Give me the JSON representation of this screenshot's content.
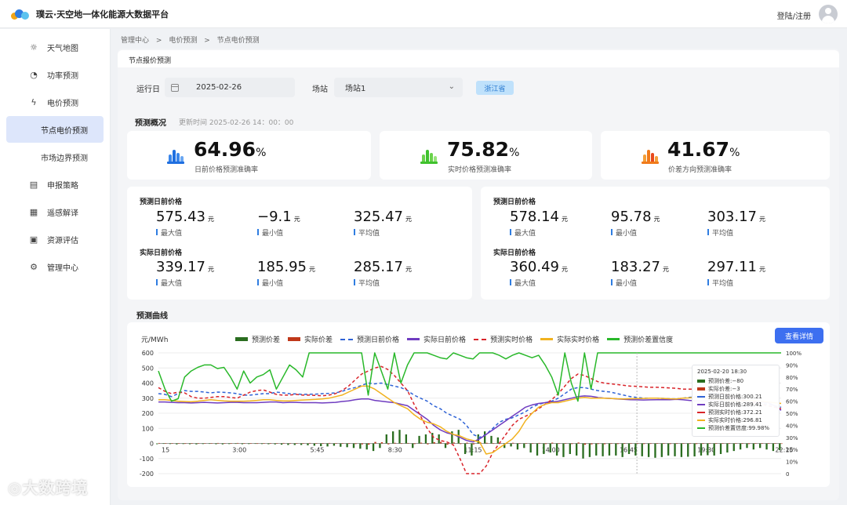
{
  "header": {
    "brand": "璞云·天空地一体化能源大数据平台",
    "login": "登陆/注册"
  },
  "sidebar": {
    "items": [
      {
        "label": "天气地图",
        "icon": "cloud-sun-icon"
      },
      {
        "label": "功率预测",
        "icon": "gauge-icon"
      },
      {
        "label": "电价预测",
        "icon": "lightning-icon"
      },
      {
        "label": "节点电价预测",
        "icon": ""
      },
      {
        "label": "市场边界预测",
        "icon": ""
      },
      {
        "label": "申报策略",
        "icon": "document-icon"
      },
      {
        "label": "遥感解译",
        "icon": "satellite-icon"
      },
      {
        "label": "资源评估",
        "icon": "database-icon"
      },
      {
        "label": "管理中心",
        "icon": "gear-icon"
      }
    ]
  },
  "breadcrumb": [
    "管理中心",
    ">",
    "电价预测",
    ">",
    "节点电价预测"
  ],
  "panel_title": "节点报价预测",
  "filters": {
    "date_label": "运行日",
    "date_value": "2025-02-26",
    "station_label": "场站",
    "station_value": "场站1",
    "region_tag": "浙江省"
  },
  "overview": {
    "title": "预测概况",
    "update_time": "更新时间 2025-02-26 14：00：00",
    "kpis": [
      {
        "value": "64.96",
        "unit": "%",
        "label": "日前价格预测准确率",
        "color": "#1f6fe0"
      },
      {
        "value": "75.82",
        "unit": "%",
        "label": "实时价格预测准确率",
        "color": "#3fc12d"
      },
      {
        "value": "41.67",
        "unit": "%",
        "label": "价差方向预测准确率",
        "color": "#f07a1a"
      }
    ]
  },
  "stats": {
    "left": {
      "forecast_title": "预测日前价格",
      "forecast": [
        {
          "v": "575.43",
          "u": "元",
          "l": "最大值"
        },
        {
          "v": "−9.1",
          "u": "元",
          "l": "最小值"
        },
        {
          "v": "325.47",
          "u": "元",
          "l": "平均值"
        }
      ],
      "actual_title": "实际日前价格",
      "actual": [
        {
          "v": "339.17",
          "u": "元",
          "l": "最大值"
        },
        {
          "v": "185.95",
          "u": "元",
          "l": "最小值"
        },
        {
          "v": "285.17",
          "u": "元",
          "l": "平均值"
        }
      ]
    },
    "right": {
      "forecast_title": "预测日前价格",
      "forecast": [
        {
          "v": "578.14",
          "u": "元",
          "l": "最大值"
        },
        {
          "v": "95.78",
          "u": "元",
          "l": "最小值"
        },
        {
          "v": "303.17",
          "u": "元",
          "l": "平均值"
        }
      ],
      "actual_title": "实际日前价格",
      "actual": [
        {
          "v": "360.49",
          "u": "元",
          "l": "最大值"
        },
        {
          "v": "183.27",
          "u": "元",
          "l": "最小值"
        },
        {
          "v": "297.11",
          "u": "元",
          "l": "平均值"
        }
      ]
    }
  },
  "curve": {
    "title": "预测曲线",
    "detail_button": "查看详情",
    "unit_label": "元/MWh",
    "tooltip": {
      "time": "2025-02-20 18:30",
      "rows": [
        "预测价差:−80",
        "实际价差:−3",
        "预测日前价格:300.21",
        "实际日前价格:289.41",
        "预测实时价格:372.21",
        "实际实时价格:296.81",
        "预测价差置信度:99.98%"
      ]
    }
  },
  "watermark": "大数跨境",
  "chart_data": {
    "type": "line",
    "x": [
      "0:15",
      "0:30",
      "0:45",
      "1:00",
      "1:15",
      "1:30",
      "1:45",
      "2:00",
      "2:15",
      "2:30",
      "2:45",
      "3:00",
      "3:15",
      "3:30",
      "3:45",
      "4:00",
      "4:15",
      "4:30",
      "4:45",
      "5:00",
      "5:15",
      "5:30",
      "5:45",
      "6:00",
      "6:15",
      "6:30",
      "6:45",
      "7:00",
      "7:15",
      "7:30",
      "7:45",
      "8:00",
      "8:15",
      "8:30",
      "8:45",
      "9:00",
      "9:15",
      "9:30",
      "9:45",
      "10:00",
      "10:15",
      "10:30",
      "10:45",
      "11:00",
      "11:15",
      "11:30",
      "11:45",
      "12:00",
      "12:15",
      "12:30",
      "12:45",
      "13:00",
      "13:15",
      "13:30",
      "13:45",
      "14:00",
      "14:15",
      "14:30",
      "14:45",
      "15:00",
      "15:15",
      "15:30",
      "15:45",
      "16:00",
      "16:15",
      "16:30",
      "16:45",
      "17:00",
      "17:15",
      "17:30",
      "17:45",
      "18:00",
      "18:15",
      "18:30",
      "18:45",
      "19:00",
      "19:15",
      "19:30",
      "19:45",
      "20:00",
      "20:15",
      "20:30",
      "20:45",
      "21:00",
      "21:15",
      "21:30",
      "21:45",
      "22:00",
      "22:15",
      "22:30",
      "22:45",
      "23:00",
      "23:15",
      "23:30",
      "23:45",
      "24:00"
    ],
    "x_tick_labels": [
      "15",
      "3:00",
      "5:45",
      "8:30",
      "11:15",
      "14:00",
      "16:45",
      "19:30",
      "22:15"
    ],
    "y_left": {
      "min": -200,
      "max": 600,
      "ticks": [
        600,
        500,
        400,
        300,
        200,
        100,
        0,
        -100,
        -200
      ]
    },
    "y_right": {
      "min": 0,
      "max": 100,
      "ticks": [
        "100%",
        "90%",
        "80%",
        "70%",
        "60%",
        "50%",
        "40%",
        "30%",
        "20%",
        "10%",
        "0"
      ]
    },
    "legend": [
      "预测价差",
      "实际价差",
      "预测日前价格",
      "实际日前价格",
      "预测实时价格",
      "实际实时价格",
      "预测价差置信度"
    ],
    "series": [
      {
        "name": "预测日前价格",
        "color": "#2f63d6",
        "dash": true,
        "axis": "left",
        "values": [
          330,
          325,
          310,
          330,
          350,
          345,
          345,
          340,
          335,
          340,
          338,
          335,
          330,
          320,
          320,
          325,
          330,
          330,
          340,
          335,
          330,
          328,
          325,
          326,
          327,
          330,
          332,
          335,
          345,
          360,
          370,
          385,
          400,
          395,
          400,
          390,
          380,
          370,
          350,
          320,
          300,
          280,
          250,
          230,
          200,
          180,
          160,
          120,
          60,
          40,
          60,
          100,
          140,
          160,
          170,
          190,
          210,
          240,
          260,
          270,
          280,
          300,
          330,
          360,
          370,
          370,
          360,
          350,
          345,
          340,
          330,
          320,
          310,
          305,
          300,
          300,
          300,
          298,
          296,
          295,
          300,
          305,
          310,
          320,
          330,
          330,
          320,
          310,
          300,
          290,
          280,
          270,
          265,
          260,
          250,
          240
        ]
      },
      {
        "name": "实际日前价格",
        "color": "#6f3cc0",
        "dash": false,
        "axis": "left",
        "values": [
          275,
          275,
          272,
          270,
          270,
          268,
          270,
          272,
          270,
          268,
          270,
          272,
          272,
          270,
          270,
          270,
          272,
          275,
          275,
          270,
          272,
          272,
          270,
          270,
          270,
          268,
          270,
          272,
          278,
          282,
          290,
          295,
          295,
          285,
          280,
          275,
          270,
          260,
          250,
          220,
          190,
          160,
          120,
          90,
          70,
          60,
          40,
          20,
          10,
          30,
          60,
          90,
          120,
          150,
          180,
          210,
          240,
          255,
          265,
          270,
          275,
          280,
          290,
          300,
          310,
          315,
          312,
          305,
          300,
          298,
          295,
          292,
          290,
          289,
          288,
          289,
          290,
          290,
          290,
          292,
          290,
          285,
          282,
          282,
          283,
          285,
          290,
          290,
          285,
          280,
          278,
          275,
          275,
          270,
          250,
          220
        ]
      },
      {
        "name": "预测实时价格",
        "color": "#d9242a",
        "dash": true,
        "axis": "left",
        "values": [
          370,
          345,
          330,
          340,
          335,
          310,
          300,
          300,
          305,
          310,
          310,
          305,
          300,
          320,
          340,
          350,
          355,
          340,
          325,
          320,
          320,
          325,
          320,
          320,
          318,
          316,
          320,
          330,
          350,
          380,
          420,
          460,
          480,
          500,
          510,
          490,
          450,
          400,
          350,
          260,
          180,
          100,
          40,
          20,
          10,
          -10,
          -100,
          -200,
          -200,
          -200,
          -150,
          -60,
          0,
          60,
          120,
          160,
          180,
          200,
          230,
          260,
          290,
          330,
          380,
          430,
          460,
          450,
          430,
          410,
          400,
          395,
          390,
          385,
          380,
          378,
          375,
          372,
          372,
          370,
          368,
          365,
          360,
          360,
          360,
          355,
          350,
          345,
          330,
          320,
          300,
          290,
          280,
          270,
          260,
          250,
          240,
          230
        ]
      },
      {
        "name": "实际实时价格",
        "color": "#f1b21f",
        "dash": false,
        "axis": "left",
        "values": [
          290,
          290,
          285,
          280,
          278,
          276,
          280,
          285,
          290,
          285,
          282,
          280,
          280,
          280,
          282,
          285,
          290,
          290,
          285,
          282,
          282,
          285,
          288,
          290,
          292,
          295,
          300,
          310,
          320,
          340,
          360,
          380,
          380,
          360,
          330,
          300,
          270,
          250,
          230,
          190,
          160,
          140,
          130,
          110,
          80,
          60,
          50,
          30,
          20,
          10,
          -70,
          -60,
          -30,
          0,
          30,
          80,
          150,
          200,
          240,
          260,
          270,
          270,
          280,
          290,
          300,
          305,
          300,
          300,
          300,
          298,
          296,
          295,
          296,
          297,
          298,
          300,
          300,
          298,
          296,
          295,
          300,
          302,
          305,
          300,
          298,
          295,
          290,
          285,
          280,
          280,
          282,
          282,
          280,
          275,
          270,
          265
        ]
      },
      {
        "name": "预测价差置信度",
        "color": "#29b82a",
        "dash": false,
        "axis": "right",
        "values": [
          85,
          70,
          60,
          62,
          80,
          85,
          88,
          90,
          90,
          87,
          88,
          80,
          70,
          85,
          75,
          80,
          82,
          86,
          70,
          80,
          90,
          86,
          80,
          100,
          100,
          100,
          100,
          100,
          100,
          100,
          100,
          100,
          65,
          100,
          85,
          70,
          100,
          75,
          90,
          100,
          100,
          100,
          98,
          96,
          95,
          100,
          98,
          96,
          95,
          100,
          100,
          100,
          98,
          95,
          98,
          100,
          98,
          96,
          98,
          90,
          80,
          65,
          100,
          75,
          60,
          100,
          70,
          100,
          100,
          100,
          100,
          100,
          100,
          100,
          100,
          100,
          100,
          100,
          100,
          100,
          100,
          100,
          100,
          100,
          100,
          100,
          100,
          100,
          100,
          100,
          100,
          100,
          100,
          100,
          100,
          100
        ]
      }
    ],
    "bar_series": [
      {
        "name": "预测价差",
        "color": "#2a6d1f",
        "values": [
          -5,
          -3,
          -4,
          -6,
          -4,
          -5,
          -6,
          -4,
          -3,
          -5,
          -6,
          -4,
          -3,
          -5,
          -4,
          -3,
          -4,
          -5,
          -6,
          -8,
          -10,
          -10,
          -10,
          -12,
          -15,
          -18,
          -20,
          -15,
          -22,
          -25,
          -30,
          -35,
          -40,
          -50,
          -30,
          60,
          80,
          90,
          60,
          -30,
          50,
          60,
          70,
          60,
          -30,
          80,
          90,
          -70,
          -80,
          60,
          80,
          50,
          40,
          -30,
          -20,
          -40,
          -30,
          -60,
          -80,
          -70,
          -60,
          -80,
          -90,
          -70,
          -80,
          -100,
          -90,
          -80,
          -85,
          -80,
          -80,
          -90,
          -70,
          -80,
          -85,
          -90,
          -95,
          -90,
          -80,
          -85,
          -90,
          -88,
          -86,
          -80,
          -78,
          -80,
          -70,
          -60,
          -50,
          -40,
          -30,
          -40,
          -30,
          -40,
          -50,
          -45
        ]
      },
      {
        "name": "实际价差",
        "color": "#c0381a",
        "values": [
          3,
          2,
          -2,
          2,
          -3,
          2,
          2,
          -2,
          2,
          3,
          -2,
          2,
          3,
          -2,
          2,
          -3,
          2,
          2,
          -2,
          3,
          2,
          -2,
          2,
          3,
          -2,
          2,
          3,
          -2,
          2,
          -3,
          -4,
          -6,
          -8,
          10,
          8,
          -6,
          4,
          -3,
          3,
          -4,
          5,
          -6,
          8,
          10,
          -8,
          6,
          -4,
          5,
          -6,
          8,
          4,
          -3,
          2,
          -3,
          4,
          -3,
          2,
          -2,
          3,
          -4,
          5,
          -3,
          2,
          -4,
          6,
          -8,
          -6,
          -4,
          -5,
          -3,
          -4,
          -3,
          -2,
          -3,
          -4,
          -3,
          -2,
          -3,
          -4,
          -3,
          -2,
          -3,
          -4,
          -3,
          -2,
          -3,
          -2,
          -3,
          -2,
          -3,
          -4,
          -3,
          -2,
          -3,
          -2,
          -3
        ]
      }
    ]
  }
}
